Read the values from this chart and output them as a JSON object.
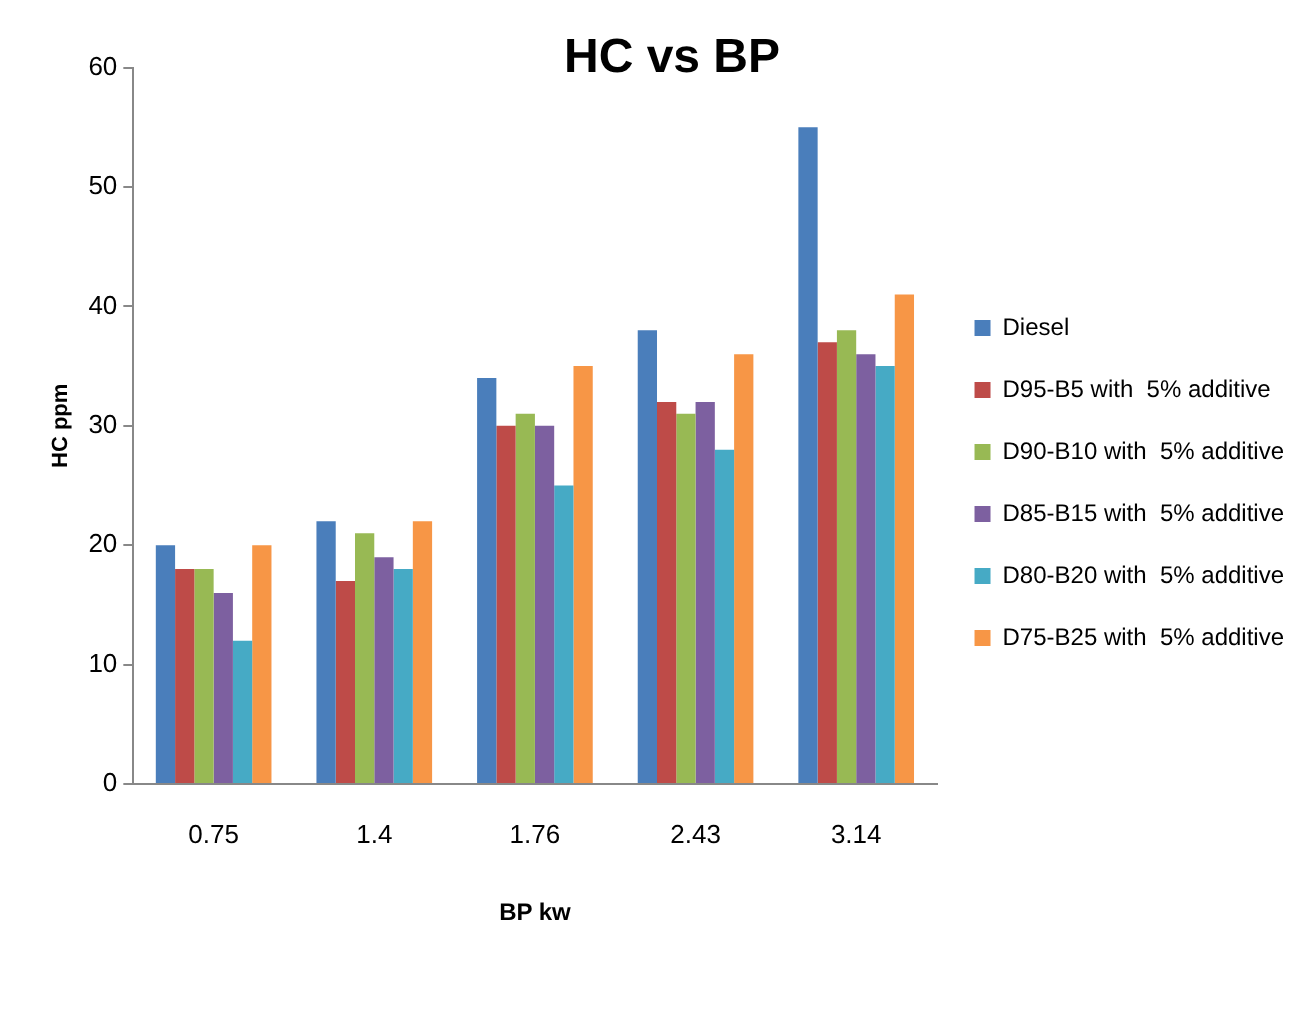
{
  "chart_data": {
    "type": "bar",
    "title": "HC vs BP",
    "xlabel": "BP kw",
    "ylabel": "HC ppm",
    "categories": [
      "0.75",
      "1.4",
      "1.76",
      "2.43",
      "3.14"
    ],
    "series": [
      {
        "name": "Diesel",
        "color": "#4a7ebb",
        "values": [
          20,
          22,
          34,
          38,
          55
        ]
      },
      {
        "name": "D95-B5 with  5% additive",
        "color": "#be4b48",
        "values": [
          18,
          17,
          30,
          32,
          37
        ]
      },
      {
        "name": "D90-B10 with  5% additive",
        "color": "#98b954",
        "values": [
          18,
          21,
          31,
          31,
          38
        ]
      },
      {
        "name": "D85-B15 with  5% additive",
        "color": "#7d60a0",
        "values": [
          16,
          19,
          30,
          32,
          36
        ]
      },
      {
        "name": "D80-B20 with  5% additive",
        "color": "#46aac5",
        "values": [
          12,
          18,
          25,
          28,
          35
        ]
      },
      {
        "name": "D75-B25 with  5% additive",
        "color": "#f79646",
        "values": [
          20,
          22,
          35,
          36,
          41
        ]
      }
    ],
    "ylim": [
      0,
      60
    ],
    "yticks": [
      0,
      10,
      20,
      30,
      40,
      50,
      60
    ],
    "grid": false,
    "legend": "right"
  }
}
